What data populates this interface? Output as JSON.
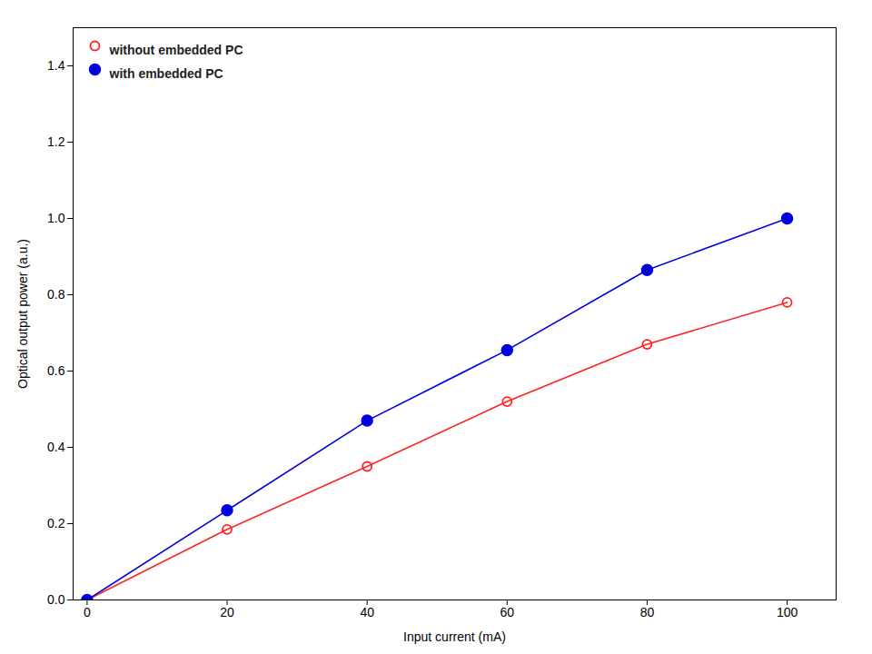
{
  "chart_data": {
    "type": "line",
    "x": [
      0,
      20,
      40,
      60,
      80,
      100
    ],
    "series": [
      {
        "name": "without embedded PC",
        "color": "#ff2222",
        "marker": "open_circle",
        "values": [
          0.0,
          0.185,
          0.35,
          0.52,
          0.67,
          0.78
        ]
      },
      {
        "name": "with embedded PC",
        "color": "#0000dd",
        "marker": "circle",
        "values": [
          0.0,
          0.235,
          0.47,
          0.655,
          0.865,
          1.0
        ]
      }
    ],
    "xlabel": "Input current (mA)",
    "ylabel": "Optical output power (a.u.)",
    "xlim": [
      -2,
      107
    ],
    "ylim": [
      0.0,
      1.5
    ],
    "xticks": [
      0,
      20,
      40,
      60,
      80,
      100
    ],
    "yticks": [
      {
        "value": 0.0,
        "label": "0.0"
      },
      0.2,
      0.4,
      0.6,
      0.8,
      {
        "value": 1.0,
        "label": "1.0"
      },
      1.2,
      1.4
    ],
    "legend": "upper left"
  }
}
